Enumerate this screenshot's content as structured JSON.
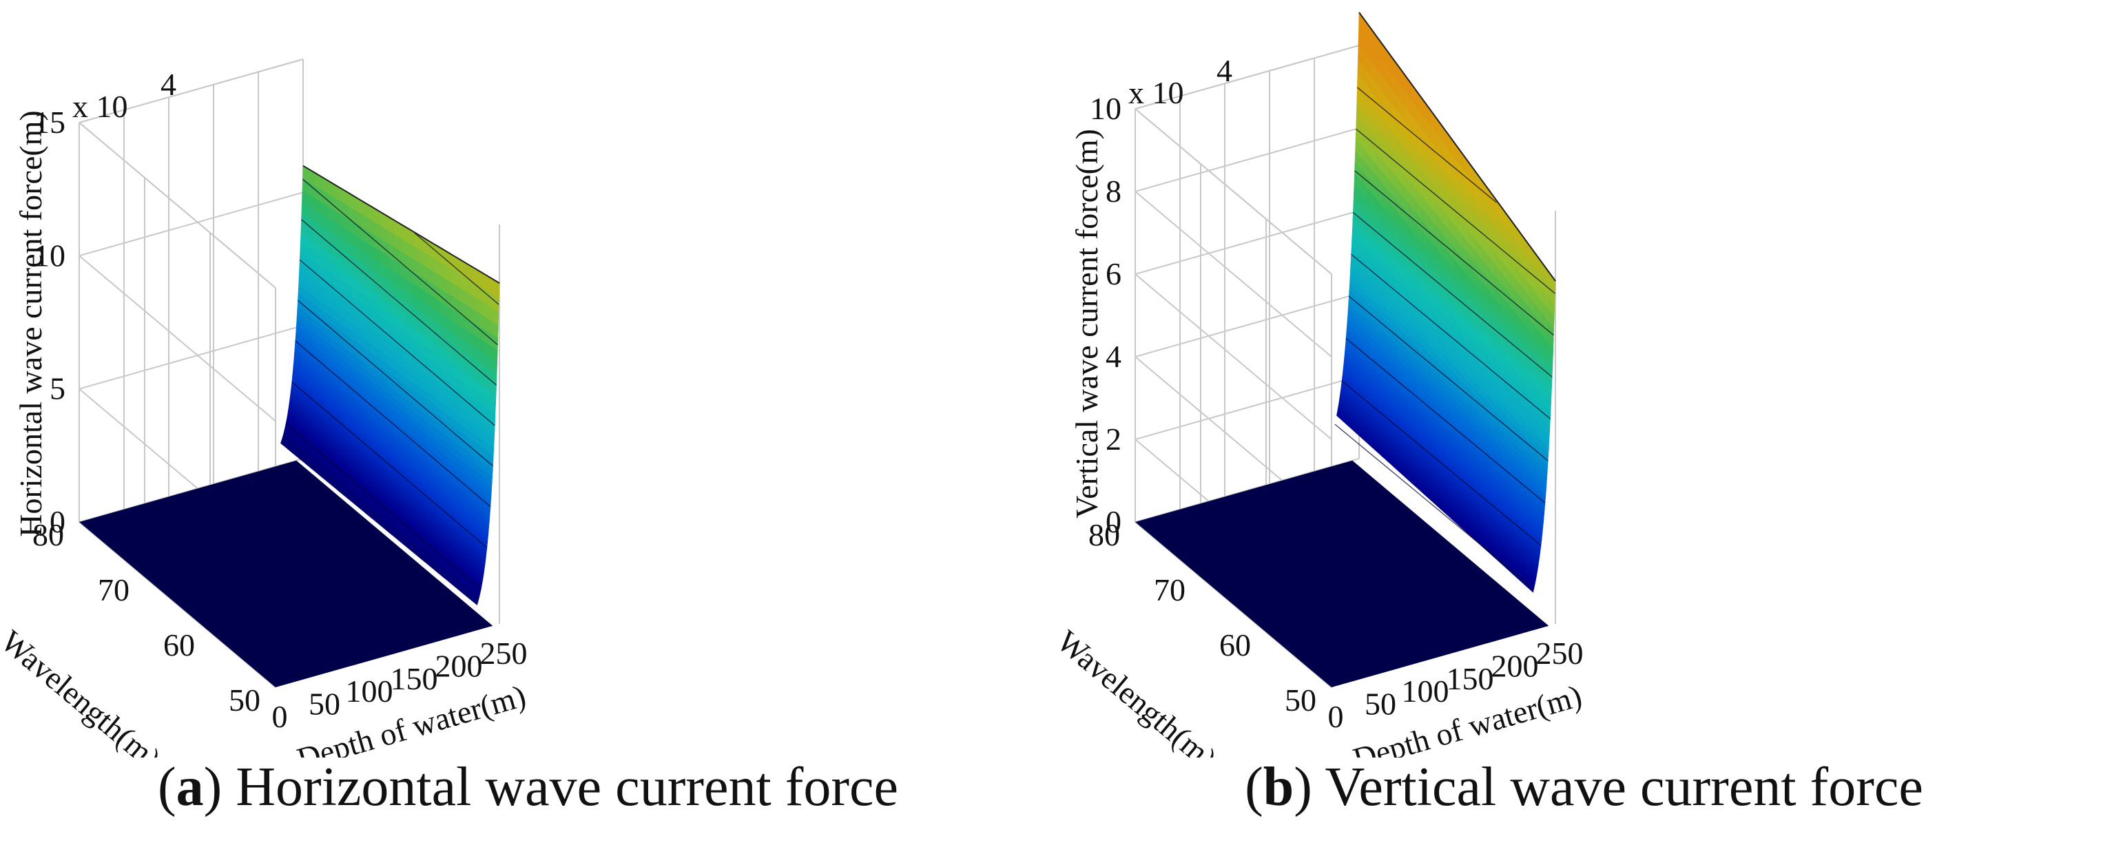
{
  "chart_data": [
    {
      "id": "a",
      "type": "surface",
      "caption_letter": "a",
      "caption_text": "Horizontal wave current force",
      "zlabel": "Horizontal wave current force(m)",
      "xlabel": "Depth of water(m)",
      "ylabel": "Wavelength(m)",
      "exponent_base": "x 10",
      "exponent_power": "4",
      "xlim": [
        0,
        250
      ],
      "ylim": [
        50,
        80
      ],
      "zlim": [
        0,
        15
      ],
      "xticks": [
        "0",
        "50",
        "100",
        "150",
        "200",
        "250"
      ],
      "yticks": [
        "50",
        "60",
        "70",
        "80"
      ],
      "zticks": [
        "0",
        "5",
        "10",
        "15"
      ],
      "z_at_max_depth": {
        "wavelength_80": 11.0,
        "wavelength_50": 12.8
      },
      "grid": true
    },
    {
      "id": "b",
      "type": "surface",
      "caption_letter": "b",
      "caption_text": "Vertical wave current force",
      "zlabel": "Vertical wave current force(m)",
      "xlabel": "Depth of water(m)",
      "ylabel": "Wavelength(m)",
      "exponent_base": "x 10",
      "exponent_power": "4",
      "xlim": [
        0,
        250
      ],
      "ylim": [
        50,
        80
      ],
      "zlim": [
        0,
        10
      ],
      "xticks": [
        "0",
        "50",
        "100",
        "150",
        "200",
        "250"
      ],
      "yticks": [
        "50",
        "60",
        "70",
        "80"
      ],
      "zticks": [
        "0",
        "2",
        "4",
        "6",
        "8",
        "10"
      ],
      "z_at_max_depth": {
        "wavelength_80": 10.8,
        "wavelength_50": 8.3
      },
      "grid": true
    }
  ],
  "colors": {
    "surface_base": "#00004a",
    "colormap": [
      "#00004a",
      "#000090",
      "#0038d0",
      "#0070d8",
      "#08a8c8",
      "#10c0b0",
      "#30b860",
      "#90c030",
      "#d0b010",
      "#e09010"
    ],
    "grid": "#c8c8c8",
    "axis": "#333333"
  }
}
